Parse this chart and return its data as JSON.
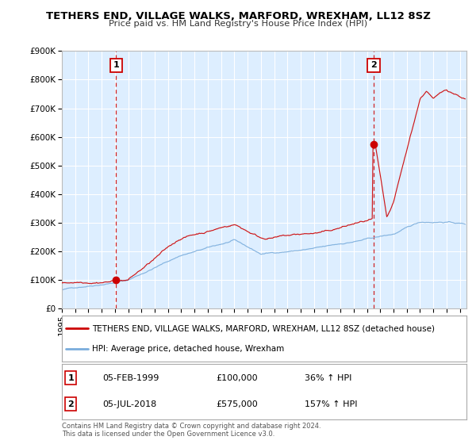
{
  "title": "TETHERS END, VILLAGE WALKS, MARFORD, WREXHAM, LL12 8SZ",
  "subtitle": "Price paid vs. HM Land Registry's House Price Index (HPI)",
  "ylim": [
    0,
    900000
  ],
  "xlim_start": 1995.0,
  "xlim_end": 2025.5,
  "yticks": [
    0,
    100000,
    200000,
    300000,
    400000,
    500000,
    600000,
    700000,
    800000,
    900000
  ],
  "ytick_labels": [
    "£0",
    "£100K",
    "£200K",
    "£300K",
    "£400K",
    "£500K",
    "£600K",
    "£700K",
    "£800K",
    "£900K"
  ],
  "xticks": [
    1995,
    1996,
    1997,
    1998,
    1999,
    2000,
    2001,
    2002,
    2003,
    2004,
    2005,
    2006,
    2007,
    2008,
    2009,
    2010,
    2011,
    2012,
    2013,
    2014,
    2015,
    2016,
    2017,
    2018,
    2019,
    2020,
    2021,
    2022,
    2023,
    2024,
    2025
  ],
  "marker1_x": 1999.09,
  "marker1_y": 100000,
  "marker2_x": 2018.5,
  "marker2_y": 575000,
  "marker1_label": "1",
  "marker2_label": "2",
  "marker1_date": "05-FEB-1999",
  "marker1_price": "£100,000",
  "marker1_hpi": "36% ↑ HPI",
  "marker2_date": "05-JUL-2018",
  "marker2_price": "£575,000",
  "marker2_hpi": "157% ↑ HPI",
  "legend_line1": "TETHERS END, VILLAGE WALKS, MARFORD, WREXHAM, LL12 8SZ (detached house)",
  "legend_line2": "HPI: Average price, detached house, Wrexham",
  "footnote1": "Contains HM Land Registry data © Crown copyright and database right 2024.",
  "footnote2": "This data is licensed under the Open Government Licence v3.0.",
  "line_color_red": "#cc0000",
  "line_color_blue": "#7aaddc",
  "bg_color": "#ddeeff",
  "outer_bg": "#ffffff",
  "grid_color": "#ffffff",
  "dashed_line_color": "#cc0000",
  "marker_box_edge": "#cc0000"
}
